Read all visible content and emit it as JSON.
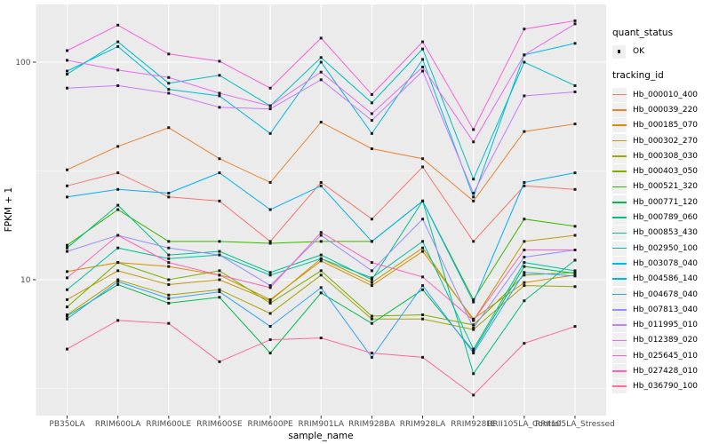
{
  "legend": {
    "quant_status": {
      "title": "quant_status",
      "items": [
        "OK"
      ]
    },
    "tracking_id": {
      "title": "tracking_id"
    }
  },
  "chart_data": {
    "type": "line",
    "title": "",
    "xlabel": "sample_name",
    "ylabel": "FPKM + 1",
    "y_scale": "log10",
    "y_ticks": [
      100,
      10
    ],
    "y_minor_ticks": [
      31.62,
      3.162
    ],
    "ylim": [
      2.4,
      184
    ],
    "grid": true,
    "legend_position": "right",
    "panel_bg": "#ebebeb",
    "grid_color": "#ffffff",
    "point_color": "#1a1a1a",
    "tick_label_color": "#4d4d4d",
    "categories": [
      "PB350LA",
      "RRIM600LA",
      "RRIM600LE",
      "RRIM600SE",
      "RRIM600PE",
      "RRIM901LA",
      "RRIM928BA",
      "RRIM928LA",
      "RRIM928LE",
      "RRII105LA_Control",
      "RRII105LA_Stressed"
    ],
    "series": [
      {
        "name": "Hb_000010_400",
        "color": "#F8766D",
        "values": [
          27,
          31,
          24,
          23,
          15,
          28,
          19,
          33,
          15,
          27,
          26
        ]
      },
      {
        "name": "Hb_000039_220",
        "color": "#EA8331",
        "values": [
          32,
          41,
          50,
          36,
          28,
          53,
          40,
          36,
          23,
          48,
          52
        ]
      },
      {
        "name": "Hb_000185_070",
        "color": "#D89000",
        "values": [
          10.9,
          12,
          11.5,
          10.5,
          8.1,
          12.2,
          9.4,
          13.5,
          6.6,
          9.7,
          10.5
        ]
      },
      {
        "name": "Hb_000302_270",
        "color": "#C09B00",
        "values": [
          8.1,
          11,
          9.5,
          10,
          8,
          12.5,
          9.7,
          14,
          6.5,
          15,
          16
        ]
      },
      {
        "name": "Hb_000308_030",
        "color": "#A3A500",
        "values": [
          6.9,
          10,
          8.5,
          9,
          7,
          10.5,
          6.6,
          6.6,
          5.9,
          9.4,
          9.3
        ]
      },
      {
        "name": "Hb_000403_050",
        "color": "#7CAE00",
        "values": [
          7.5,
          12,
          10,
          11,
          7.8,
          11,
          6.8,
          6.9,
          6.2,
          10.5,
          10.8
        ]
      },
      {
        "name": "Hb_000521_320",
        "color": "#39B600",
        "values": [
          14.4,
          21,
          15,
          15,
          14.7,
          15,
          15,
          23,
          8.1,
          19,
          17.6
        ]
      },
      {
        "name": "Hb_000771_120",
        "color": "#00BB4E",
        "values": [
          6.8,
          9.5,
          7.8,
          8.3,
          4.6,
          8.7,
          6.3,
          9,
          4.7,
          11.5,
          10.7
        ]
      },
      {
        "name": "Hb_000789_060",
        "color": "#00C087",
        "values": [
          14,
          22,
          13,
          13.5,
          10.8,
          13,
          10,
          23,
          3.7,
          8,
          12.3
        ]
      },
      {
        "name": "Hb_000853_430",
        "color": "#00C1A2",
        "values": [
          9,
          14,
          12.5,
          13,
          10.5,
          12.5,
          10.2,
          15,
          4.8,
          12,
          11
        ]
      },
      {
        "name": "Hb_002950_100",
        "color": "#00BFC4",
        "values": [
          88,
          124,
          80,
          87,
          63,
          105,
          65,
          115,
          29,
          100,
          78
        ]
      },
      {
        "name": "Hb_003078_040",
        "color": "#00BAE0",
        "values": [
          91,
          118,
          75,
          70,
          47,
          100,
          47,
          103,
          24,
          108,
          122
        ]
      },
      {
        "name": "Hb_004586_140",
        "color": "#00B0F6",
        "values": [
          24,
          26,
          25,
          31,
          21,
          27,
          15,
          23,
          7.9,
          28,
          31
        ]
      },
      {
        "name": "Hb_004678_040",
        "color": "#35A2FF",
        "values": [
          6.6,
          9.8,
          8.2,
          8.8,
          6.1,
          9.2,
          4.4,
          9.4,
          4.6,
          10.8,
          10.4
        ]
      },
      {
        "name": "Hb_007813_040",
        "color": "#9590FF",
        "values": [
          13.5,
          16,
          14,
          13,
          9.4,
          16,
          11,
          19,
          6.0,
          12.7,
          13.7
        ]
      },
      {
        "name": "Hb_011995_010",
        "color": "#C77CFF",
        "values": [
          76,
          78,
          72,
          62,
          61,
          83,
          54,
          91,
          25,
          70,
          73
        ]
      },
      {
        "name": "Hb_012389_020",
        "color": "#E76BF3",
        "values": [
          102,
          92,
          85,
          72,
          63,
          90,
          58,
          95,
          43,
          108,
          150
        ]
      },
      {
        "name": "Hb_025645_010",
        "color": "#FA62DB",
        "values": [
          113,
          148,
          109,
          101,
          76,
          129,
          71,
          124,
          49,
          142,
          155
        ]
      },
      {
        "name": "Hb_027428_010",
        "color": "#FF62BC",
        "values": [
          10.2,
          16,
          12,
          10.5,
          9.2,
          16.5,
          12,
          10.3,
          6.5,
          13.7,
          13.7
        ]
      },
      {
        "name": "Hb_036790_100",
        "color": "#FF6A98",
        "values": [
          4.8,
          6.5,
          6.3,
          4.2,
          5.3,
          5.4,
          4.6,
          4.4,
          2.95,
          5.1,
          6.1
        ]
      }
    ]
  }
}
